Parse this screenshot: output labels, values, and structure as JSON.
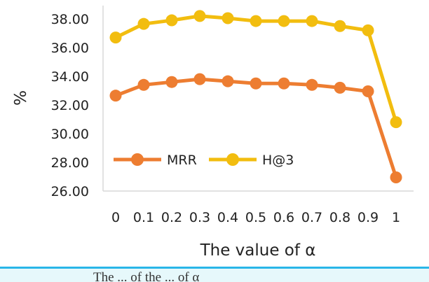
{
  "chart_data": {
    "type": "line",
    "categories": [
      "0",
      "0.1",
      "0.2",
      "0.3",
      "0.4",
      "0.5",
      "0.6",
      "0.7",
      "0.8",
      "0.9",
      "1"
    ],
    "series": [
      {
        "name": "MRR",
        "color": "#ed7d31",
        "values": [
          32.65,
          33.4,
          33.6,
          33.8,
          33.65,
          33.5,
          33.5,
          33.4,
          33.2,
          32.95,
          26.95
        ]
      },
      {
        "name": "H@3",
        "color": "#f2bd0f",
        "values": [
          36.7,
          37.65,
          37.9,
          38.2,
          38.05,
          37.85,
          37.85,
          37.85,
          37.5,
          37.2,
          30.8
        ]
      }
    ],
    "yticks": [
      "26.00",
      "28.00",
      "30.00",
      "32.00",
      "34.00",
      "36.00",
      "38.00"
    ],
    "ylim": [
      26,
      38.5
    ],
    "xlabel": "The value of α",
    "ylabel": "%",
    "grid": false,
    "legend": "inside-lower-left"
  },
  "caption": "The ... of the ... of α"
}
